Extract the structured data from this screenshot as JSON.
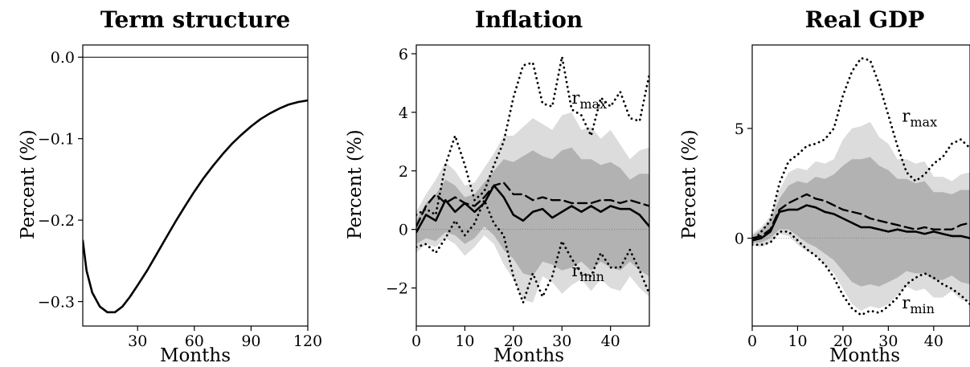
{
  "chart_data": [
    {
      "type": "line",
      "title": "Term structure",
      "xlabel": "Months",
      "ylabel": "Percent (%)",
      "xlim": [
        1,
        120
      ],
      "ylim": [
        -0.33,
        0.015
      ],
      "xticks": [
        30,
        60,
        90,
        120
      ],
      "yticks": [
        0.0,
        -0.1,
        -0.2,
        -0.3
      ],
      "ytick_labels": [
        "0.0",
        "−0.1",
        "−0.2",
        "−0.3"
      ],
      "zero_line": true,
      "series": [
        {
          "style": "solid",
          "x": [
            1,
            3,
            6,
            10,
            14,
            18,
            22,
            26,
            30,
            35,
            40,
            45,
            50,
            55,
            60,
            65,
            70,
            75,
            80,
            85,
            90,
            95,
            100,
            105,
            110,
            115,
            120
          ],
          "y": [
            -0.225,
            -0.262,
            -0.289,
            -0.306,
            -0.313,
            -0.313,
            -0.306,
            -0.294,
            -0.28,
            -0.262,
            -0.242,
            -0.222,
            -0.202,
            -0.183,
            -0.165,
            -0.148,
            -0.133,
            -0.119,
            -0.106,
            -0.095,
            -0.085,
            -0.076,
            -0.069,
            -0.063,
            -0.058,
            -0.055,
            -0.053
          ]
        }
      ]
    },
    {
      "type": "line",
      "title": "Inflation",
      "xlabel": "Months",
      "ylabel": "Percent (%)",
      "xlim": [
        0,
        48
      ],
      "ylim": [
        -3.3,
        6.3
      ],
      "xticks": [
        0,
        10,
        20,
        30,
        40
      ],
      "yticks": [
        6,
        4,
        2,
        0,
        -2
      ],
      "ytick_labels": [
        "6",
        "4",
        "2",
        "0",
        "−2"
      ],
      "zero_line": true,
      "annotations": [
        {
          "base": "r",
          "sub": "max",
          "x": 32,
          "y": 4.3
        },
        {
          "base": "r",
          "sub": "min",
          "x": 32,
          "y": -1.6
        }
      ],
      "x": [
        0,
        2,
        4,
        6,
        8,
        10,
        12,
        14,
        16,
        18,
        20,
        22,
        24,
        26,
        28,
        30,
        32,
        34,
        36,
        38,
        40,
        42,
        44,
        46,
        48
      ],
      "bands": [
        {
          "name": "outer",
          "upper": [
            0.6,
            1.2,
            1.7,
            2.3,
            2.0,
            1.5,
            1.6,
            2.1,
            2.6,
            3.2,
            3.2,
            3.5,
            3.8,
            3.6,
            3.4,
            3.9,
            4.0,
            3.4,
            3.5,
            3.1,
            3.4,
            2.9,
            2.4,
            2.7,
            2.8
          ],
          "lower": [
            -0.8,
            -0.5,
            -0.6,
            -0.3,
            -0.5,
            -0.9,
            -0.6,
            -0.2,
            -0.5,
            -1.2,
            -1.7,
            -2.4,
            -2.5,
            -1.6,
            -1.8,
            -2.2,
            -1.9,
            -1.7,
            -2.1,
            -1.7,
            -2.0,
            -2.1,
            -1.6,
            -2.0,
            -2.3
          ]
        },
        {
          "name": "inner",
          "upper": [
            0.3,
            0.9,
            1.2,
            1.7,
            1.5,
            1.1,
            1.2,
            1.6,
            2.0,
            2.4,
            2.3,
            2.5,
            2.7,
            2.5,
            2.4,
            2.7,
            2.8,
            2.4,
            2.4,
            2.2,
            2.3,
            2.1,
            1.7,
            1.9,
            1.9
          ],
          "lower": [
            -0.5,
            -0.3,
            -0.4,
            -0.1,
            -0.2,
            -0.5,
            -0.3,
            0.1,
            -0.2,
            -0.7,
            -1.0,
            -1.5,
            -1.6,
            -1.1,
            -1.2,
            -1.4,
            -1.3,
            -1.1,
            -1.4,
            -1.1,
            -1.3,
            -1.4,
            -1.1,
            -1.4,
            -1.6
          ]
        }
      ],
      "series": [
        {
          "style": "solid",
          "y": [
            -0.1,
            0.5,
            0.3,
            1.0,
            0.6,
            0.9,
            0.6,
            0.9,
            1.5,
            1.1,
            0.5,
            0.3,
            0.6,
            0.7,
            0.4,
            0.6,
            0.8,
            0.6,
            0.8,
            0.6,
            0.8,
            0.7,
            0.7,
            0.5,
            0.1
          ]
        },
        {
          "style": "dashed",
          "y": [
            0.1,
            0.8,
            1.2,
            0.9,
            1.1,
            0.9,
            0.8,
            1.1,
            1.5,
            1.6,
            1.2,
            1.2,
            1.0,
            1.1,
            1.0,
            1.0,
            0.9,
            0.9,
            0.9,
            1.0,
            1.0,
            0.9,
            1.0,
            0.9,
            0.8
          ]
        },
        {
          "style": "dotted",
          "y": [
            0.5,
            0.7,
            0.5,
            2.2,
            3.2,
            2.2,
            1.0,
            1.3,
            2.2,
            3.0,
            4.5,
            5.6,
            5.7,
            4.3,
            4.2,
            5.9,
            4.1,
            3.9,
            3.2,
            4.5,
            4.2,
            4.7,
            3.8,
            3.7,
            5.3
          ]
        },
        {
          "style": "dotted",
          "y": [
            -0.6,
            -0.5,
            -0.8,
            -0.3,
            0.3,
            -0.2,
            0.2,
            1.0,
            0.2,
            -0.2,
            -1.6,
            -2.5,
            -1.5,
            -2.3,
            -1.6,
            -0.4,
            -1.0,
            -1.5,
            -1.6,
            -0.8,
            -1.3,
            -1.3,
            -0.7,
            -1.4,
            -2.2
          ]
        }
      ]
    },
    {
      "type": "line",
      "title": "Real GDP",
      "xlabel": "Months",
      "ylabel": "Percent (%)",
      "xlim": [
        0,
        48
      ],
      "ylim": [
        -4.0,
        8.8
      ],
      "xticks": [
        0,
        10,
        20,
        30,
        40
      ],
      "yticks": [
        5,
        0
      ],
      "ytick_labels": [
        "5",
        "0"
      ],
      "zero_line": true,
      "annotations": [
        {
          "base": "r",
          "sub": "max",
          "x": 33,
          "y": 5.3
        },
        {
          "base": "r",
          "sub": "min",
          "x": 33,
          "y": -3.2
        }
      ],
      "x": [
        0,
        2,
        4,
        6,
        8,
        10,
        12,
        14,
        16,
        18,
        20,
        22,
        24,
        26,
        28,
        30,
        32,
        34,
        36,
        38,
        40,
        42,
        44,
        46,
        48
      ],
      "bands": [
        {
          "name": "outer",
          "upper": [
            0.2,
            0.5,
            1.0,
            2.2,
            3.0,
            3.2,
            3.1,
            3.5,
            3.4,
            3.6,
            4.5,
            5.0,
            5.1,
            5.3,
            4.6,
            4.3,
            3.6,
            3.6,
            3.4,
            3.5,
            2.8,
            2.8,
            2.6,
            2.9,
            3.0
          ],
          "lower": [
            -0.3,
            -0.4,
            -0.2,
            0.2,
            0.1,
            -0.3,
            -0.6,
            -0.8,
            -1.2,
            -1.6,
            -2.3,
            -3.0,
            -3.3,
            -3.1,
            -3.2,
            -3.0,
            -2.6,
            -2.2,
            -2.4,
            -2.3,
            -2.7,
            -2.7,
            -2.4,
            -2.8,
            -2.9
          ]
        },
        {
          "name": "inner",
          "upper": [
            0.1,
            0.4,
            0.8,
            1.8,
            2.4,
            2.6,
            2.5,
            2.8,
            2.7,
            2.9,
            3.3,
            3.6,
            3.6,
            3.7,
            3.3,
            3.1,
            2.7,
            2.7,
            2.5,
            2.6,
            2.1,
            2.1,
            2.0,
            2.2,
            2.2
          ],
          "lower": [
            -0.2,
            -0.2,
            0.0,
            0.4,
            0.4,
            0.1,
            -0.2,
            -0.4,
            -0.7,
            -1.0,
            -1.5,
            -2.0,
            -2.2,
            -2.1,
            -2.2,
            -2.0,
            -1.8,
            -1.5,
            -1.6,
            -1.6,
            -1.9,
            -1.9,
            -1.7,
            -2.0,
            -2.1
          ]
        }
      ],
      "series": [
        {
          "style": "solid",
          "y": [
            -0.1,
            0.0,
            0.3,
            1.2,
            1.3,
            1.3,
            1.5,
            1.4,
            1.2,
            1.1,
            0.9,
            0.7,
            0.5,
            0.5,
            0.4,
            0.3,
            0.4,
            0.3,
            0.3,
            0.2,
            0.3,
            0.2,
            0.1,
            0.1,
            0.0
          ]
        },
        {
          "style": "dashed",
          "y": [
            0.0,
            0.1,
            0.4,
            1.3,
            1.6,
            1.8,
            2.0,
            1.8,
            1.7,
            1.5,
            1.3,
            1.2,
            1.1,
            0.9,
            0.8,
            0.7,
            0.6,
            0.5,
            0.4,
            0.5,
            0.4,
            0.4,
            0.4,
            0.6,
            0.7
          ]
        },
        {
          "style": "dotted",
          "y": [
            -0.2,
            0.3,
            0.8,
            2.5,
            3.5,
            3.8,
            4.2,
            4.3,
            4.5,
            5.0,
            6.5,
            7.6,
            8.2,
            8.1,
            7.0,
            5.6,
            4.2,
            3.0,
            2.6,
            2.9,
            3.4,
            3.7,
            4.3,
            4.5,
            4.1
          ]
        },
        {
          "style": "dotted",
          "y": [
            -0.3,
            -0.3,
            -0.2,
            0.3,
            0.3,
            -0.1,
            -0.5,
            -0.8,
            -1.2,
            -1.8,
            -2.6,
            -3.2,
            -3.5,
            -3.3,
            -3.4,
            -3.1,
            -2.7,
            -2.1,
            -1.8,
            -1.6,
            -1.8,
            -2.1,
            -2.3,
            -2.6,
            -3.0
          ]
        }
      ]
    }
  ]
}
